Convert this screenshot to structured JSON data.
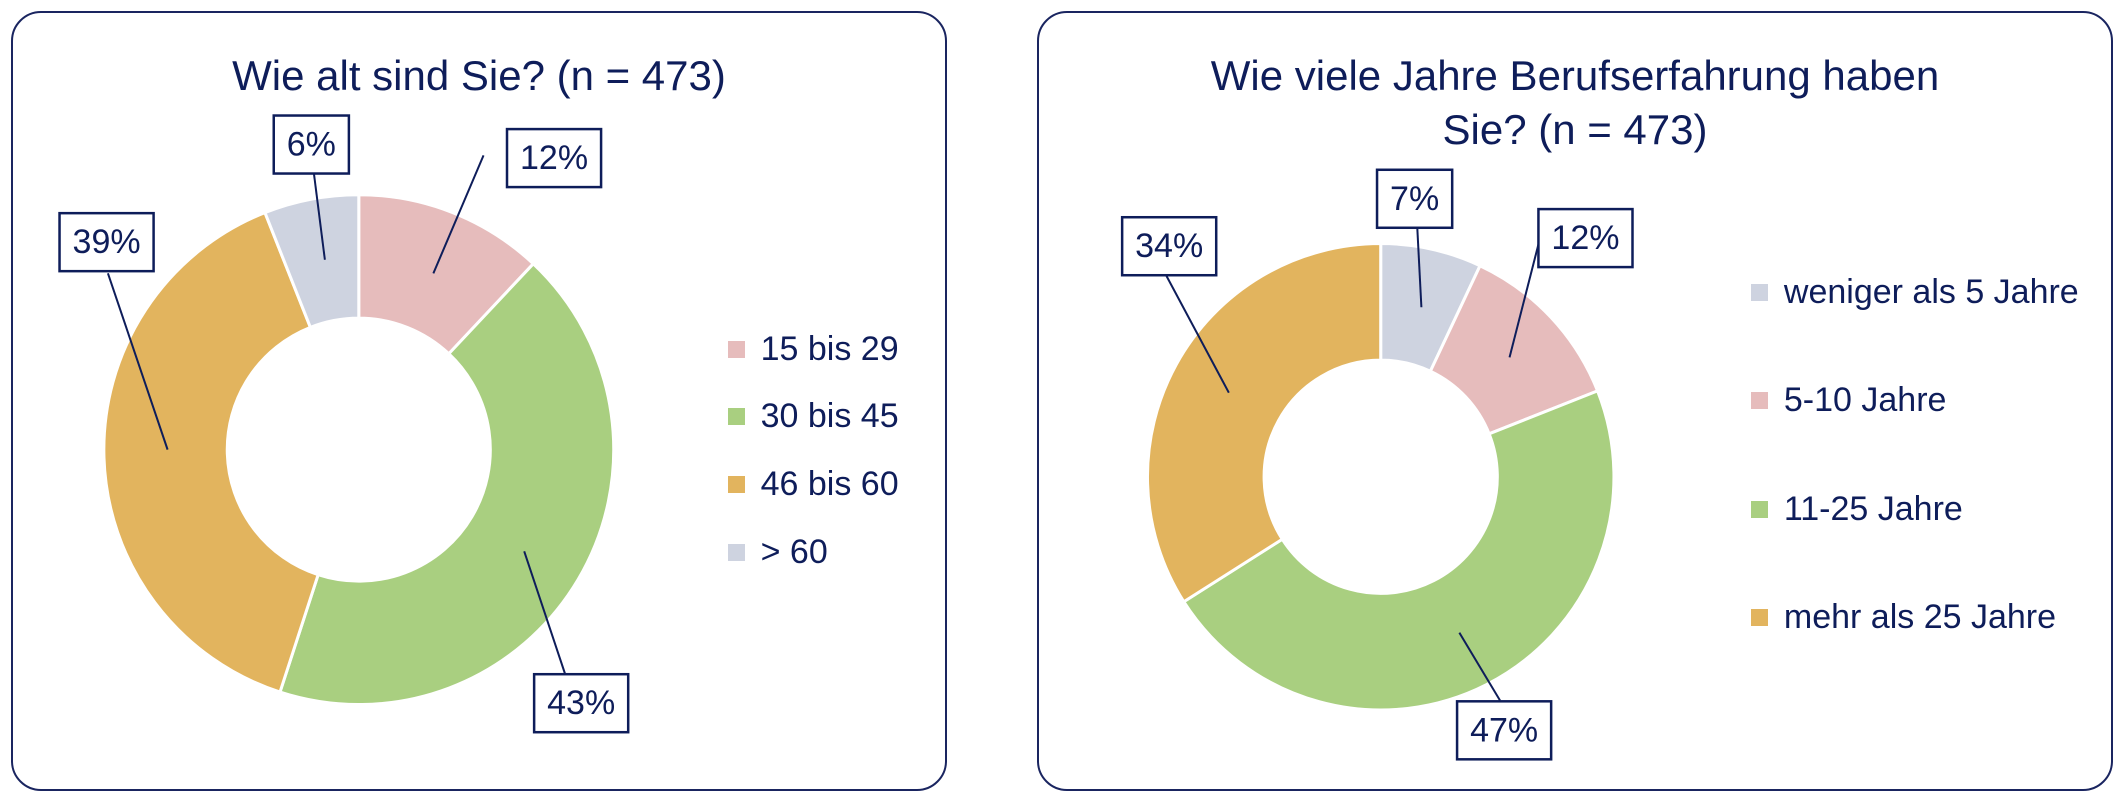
{
  "chart_data": [
    {
      "type": "donut",
      "title": "Wie alt sind Sie? (n = 473)",
      "categories": [
        "15 bis 29",
        "30 bis 45",
        "46 bis 60",
        "> 60"
      ],
      "values": [
        12,
        43,
        39,
        6
      ],
      "value_labels": [
        "12%",
        "43%",
        "39%",
        "6%"
      ],
      "colors": [
        "#e6bcbc",
        "#a9cf80",
        "#e2b45e",
        "#ced3e0"
      ]
    },
    {
      "type": "donut",
      "title": "Wie viele Jahre Berufserfahrung haben Sie? (n = 473)",
      "categories": [
        "weniger als 5 Jahre",
        "5-10 Jahre",
        "11-25 Jahre",
        "mehr als 25 Jahre"
      ],
      "values": [
        7,
        12,
        47,
        34
      ],
      "value_labels": [
        "7%",
        "12%",
        "47%",
        "34%"
      ],
      "colors": [
        "#ced3e0",
        "#e6bcbc",
        "#a9cf80",
        "#e2b45e"
      ]
    }
  ]
}
